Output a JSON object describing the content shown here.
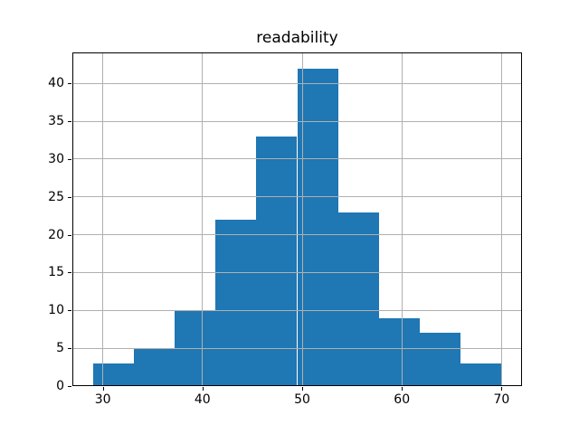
{
  "figure": {
    "background": "#ffffff"
  },
  "chart_data": {
    "type": "bar",
    "subtype": "histogram",
    "title": "readability",
    "xlabel": "",
    "ylabel": "",
    "bin_edges": [
      29.0,
      33.1,
      37.2,
      41.3,
      45.4,
      49.5,
      53.6,
      57.7,
      61.8,
      65.9,
      70.0
    ],
    "counts": [
      3,
      5,
      10,
      22,
      33,
      42,
      23,
      9,
      7,
      3
    ],
    "x_ticks": [
      30,
      40,
      50,
      60,
      70
    ],
    "y_ticks": [
      0,
      5,
      10,
      15,
      20,
      25,
      30,
      35,
      40
    ],
    "xlim": [
      26.95,
      72.05
    ],
    "ylim": [
      0,
      44.1
    ],
    "grid": true,
    "legend": "none",
    "bar_color": "#1f77b4",
    "grid_color": "#b0b0b0",
    "axis_color": "#000000",
    "text_color": "#000000"
  }
}
